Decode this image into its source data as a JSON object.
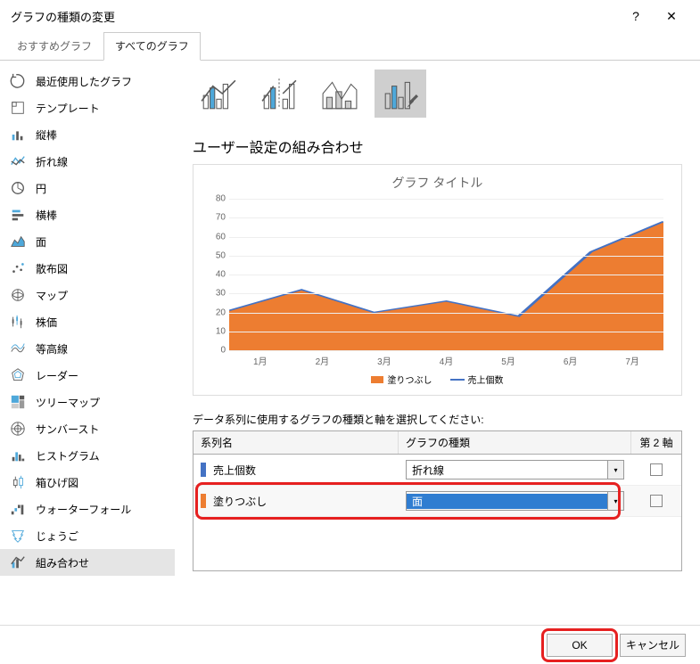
{
  "window": {
    "title": "グラフの種類の変更",
    "help": "?",
    "close": "✕"
  },
  "tabs": {
    "recommended": "おすすめグラフ",
    "all": "すべてのグラフ"
  },
  "sidebar": {
    "items": [
      {
        "label": "最近使用したグラフ"
      },
      {
        "label": "テンプレート"
      },
      {
        "label": "縦棒"
      },
      {
        "label": "折れ線"
      },
      {
        "label": "円"
      },
      {
        "label": "横棒"
      },
      {
        "label": "面"
      },
      {
        "label": "散布図"
      },
      {
        "label": "マップ"
      },
      {
        "label": "株価"
      },
      {
        "label": "等高線"
      },
      {
        "label": "レーダー"
      },
      {
        "label": "ツリーマップ"
      },
      {
        "label": "サンバースト"
      },
      {
        "label": "ヒストグラム"
      },
      {
        "label": "箱ひげ図"
      },
      {
        "label": "ウォーターフォール"
      },
      {
        "label": "じょうご"
      },
      {
        "label": "組み合わせ"
      }
    ]
  },
  "main": {
    "section_title": "ユーザー設定の組み合わせ",
    "chart": {
      "title": "グラフ タイトル",
      "y_ticks": [
        0,
        10,
        20,
        30,
        40,
        50,
        60,
        70,
        80
      ],
      "x_labels": [
        "1月",
        "2月",
        "3月",
        "4月",
        "5月",
        "6月",
        "7月"
      ],
      "area_values": [
        21,
        32,
        20,
        26,
        18,
        52,
        68
      ],
      "line_values": [
        21,
        32,
        20,
        26,
        18,
        52,
        68
      ],
      "colors": {
        "area": "#ed7d31",
        "line": "#4472c4",
        "bg": "#ffffff",
        "grid": "#eeeeee",
        "text": "#666666"
      },
      "ymax": 80
    },
    "legend": {
      "fill": "塗りつぶし",
      "count": "売上個数"
    },
    "instruction": "データ系列に使用するグラフの種類と軸を選択してください:",
    "table": {
      "head": {
        "name": "系列名",
        "type": "グラフの種類",
        "axis": "第 2 軸"
      },
      "rows": [
        {
          "color": "#4472c4",
          "name": "売上個数",
          "type": "折れ線",
          "active": false
        },
        {
          "color": "#ed7d31",
          "name": "塗りつぶし",
          "type": "面",
          "active": true
        }
      ]
    }
  },
  "footer": {
    "ok": "OK",
    "cancel": "キャンセル"
  },
  "icons": {
    "stroke": "#5a5a5a",
    "accent": "#4ea8da"
  }
}
